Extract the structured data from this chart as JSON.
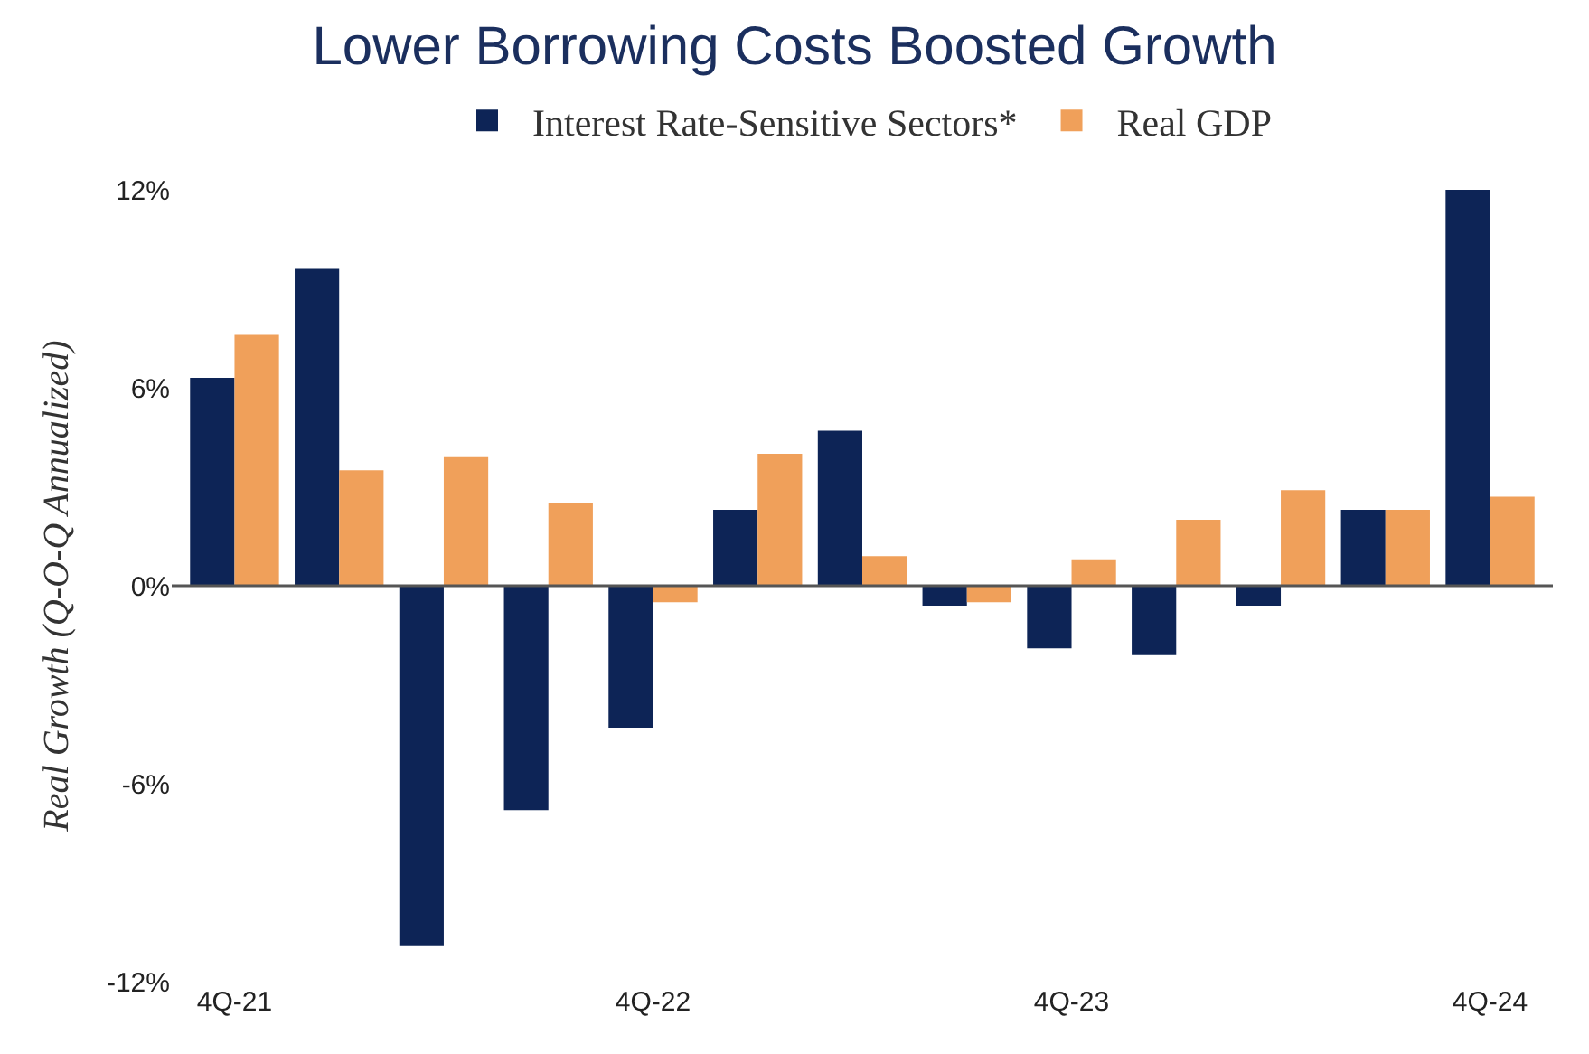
{
  "chart_data": {
    "type": "bar",
    "title": "Lower Borrowing Costs Boosted Growth",
    "ylabel": "Real Growth (Q-O-Q Annualized)",
    "categories": [
      "4Q-21",
      null,
      null,
      null,
      "4Q-22",
      null,
      null,
      null,
      "4Q-23",
      null,
      null,
      null,
      "4Q-24"
    ],
    "series": [
      {
        "name": "Interest Rate-Sensitive Sectors*",
        "color": "#0d2456",
        "values": [
          6.3,
          9.6,
          -10.9,
          -6.8,
          -4.3,
          2.3,
          4.7,
          -0.6,
          -1.9,
          -2.1,
          -0.6,
          2.3,
          12.0
        ]
      },
      {
        "name": "Real GDP",
        "color": "#f0a05a",
        "values": [
          7.6,
          3.5,
          3.9,
          2.5,
          -0.5,
          4.0,
          0.9,
          -0.5,
          0.8,
          2.0,
          2.9,
          2.3,
          2.7
        ]
      }
    ],
    "ylim": [
      -12,
      12
    ],
    "yticks": [
      {
        "value": 12,
        "label": "12%"
      },
      {
        "value": 6,
        "label": "6%"
      },
      {
        "value": 0,
        "label": "0%"
      },
      {
        "value": -6,
        "label": "-6%"
      },
      {
        "value": -12,
        "label": "-12%"
      }
    ],
    "ref_lines": [
      {
        "axis": "y",
        "value": 0,
        "color": "#555555",
        "line_style": "solid"
      }
    ],
    "legend": "top"
  }
}
